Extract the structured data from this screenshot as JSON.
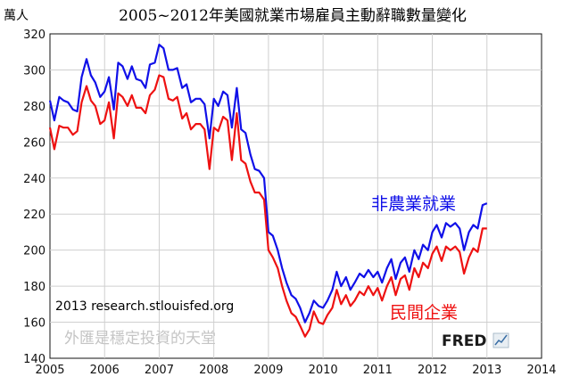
{
  "chart_data": {
    "type": "line",
    "title": "2005~2012年美國就業市場雇員主動辭職數量變化",
    "ylabel": "萬人",
    "xlabel": "",
    "xlim": [
      2005,
      2014
    ],
    "ylim": [
      140,
      320
    ],
    "x_ticks": [
      "2005",
      "2006",
      "2007",
      "2008",
      "2009",
      "2010",
      "2011",
      "2012",
      "2013",
      "2014"
    ],
    "y_ticks": [
      "140",
      "160",
      "180",
      "200",
      "220",
      "240",
      "260",
      "280",
      "300",
      "320"
    ],
    "grid": true,
    "legend": "inline labels",
    "series": [
      {
        "name": "非農業就業",
        "color": "#1010e8",
        "points": [
          [
            2005.0,
            283
          ],
          [
            2005.08,
            272
          ],
          [
            2005.17,
            285
          ],
          [
            2005.25,
            283
          ],
          [
            2005.33,
            282
          ],
          [
            2005.42,
            278
          ],
          [
            2005.5,
            277
          ],
          [
            2005.58,
            296
          ],
          [
            2005.67,
            306
          ],
          [
            2005.75,
            297
          ],
          [
            2005.83,
            293
          ],
          [
            2005.92,
            285
          ],
          [
            2006.0,
            288
          ],
          [
            2006.08,
            296
          ],
          [
            2006.17,
            278
          ],
          [
            2006.25,
            304
          ],
          [
            2006.33,
            302
          ],
          [
            2006.42,
            295
          ],
          [
            2006.5,
            302
          ],
          [
            2006.58,
            295
          ],
          [
            2006.67,
            294
          ],
          [
            2006.75,
            290
          ],
          [
            2006.83,
            303
          ],
          [
            2006.92,
            304
          ],
          [
            2007.0,
            314
          ],
          [
            2007.08,
            312
          ],
          [
            2007.17,
            300
          ],
          [
            2007.25,
            300
          ],
          [
            2007.33,
            301
          ],
          [
            2007.42,
            290
          ],
          [
            2007.5,
            292
          ],
          [
            2007.58,
            282
          ],
          [
            2007.67,
            284
          ],
          [
            2007.75,
            284
          ],
          [
            2007.83,
            281
          ],
          [
            2007.92,
            262
          ],
          [
            2008.0,
            284
          ],
          [
            2008.08,
            280
          ],
          [
            2008.17,
            288
          ],
          [
            2008.25,
            286
          ],
          [
            2008.33,
            268
          ],
          [
            2008.42,
            290
          ],
          [
            2008.5,
            267
          ],
          [
            2008.58,
            265
          ],
          [
            2008.67,
            253
          ],
          [
            2008.75,
            245
          ],
          [
            2008.83,
            244
          ],
          [
            2008.92,
            240
          ],
          [
            2009.0,
            210
          ],
          [
            2009.08,
            208
          ],
          [
            2009.17,
            200
          ],
          [
            2009.25,
            190
          ],
          [
            2009.33,
            182
          ],
          [
            2009.42,
            175
          ],
          [
            2009.5,
            173
          ],
          [
            2009.58,
            168
          ],
          [
            2009.67,
            160
          ],
          [
            2009.75,
            165
          ],
          [
            2009.83,
            172
          ],
          [
            2009.92,
            169
          ],
          [
            2010.0,
            168
          ],
          [
            2010.08,
            172
          ],
          [
            2010.17,
            178
          ],
          [
            2010.25,
            188
          ],
          [
            2010.33,
            180
          ],
          [
            2010.42,
            185
          ],
          [
            2010.5,
            178
          ],
          [
            2010.58,
            182
          ],
          [
            2010.67,
            187
          ],
          [
            2010.75,
            185
          ],
          [
            2010.83,
            189
          ],
          [
            2010.92,
            185
          ],
          [
            2011.0,
            188
          ],
          [
            2011.08,
            182
          ],
          [
            2011.17,
            190
          ],
          [
            2011.25,
            195
          ],
          [
            2011.33,
            184
          ],
          [
            2011.42,
            193
          ],
          [
            2011.5,
            196
          ],
          [
            2011.58,
            188
          ],
          [
            2011.67,
            200
          ],
          [
            2011.75,
            195
          ],
          [
            2011.83,
            203
          ],
          [
            2011.92,
            200
          ],
          [
            2012.0,
            210
          ],
          [
            2012.08,
            214
          ],
          [
            2012.17,
            207
          ],
          [
            2012.25,
            215
          ],
          [
            2012.33,
            213
          ],
          [
            2012.42,
            215
          ],
          [
            2012.5,
            212
          ],
          [
            2012.58,
            200
          ],
          [
            2012.67,
            210
          ],
          [
            2012.75,
            214
          ],
          [
            2012.83,
            212
          ],
          [
            2012.92,
            225
          ],
          [
            2013.0,
            226
          ]
        ]
      },
      {
        "name": "民間企業",
        "color": "#ee1111",
        "points": [
          [
            2005.0,
            268
          ],
          [
            2005.08,
            256
          ],
          [
            2005.17,
            269
          ],
          [
            2005.25,
            268
          ],
          [
            2005.33,
            268
          ],
          [
            2005.42,
            264
          ],
          [
            2005.5,
            266
          ],
          [
            2005.58,
            282
          ],
          [
            2005.67,
            291
          ],
          [
            2005.75,
            283
          ],
          [
            2005.83,
            280
          ],
          [
            2005.92,
            270
          ],
          [
            2006.0,
            272
          ],
          [
            2006.08,
            282
          ],
          [
            2006.17,
            262
          ],
          [
            2006.25,
            287
          ],
          [
            2006.33,
            285
          ],
          [
            2006.42,
            280
          ],
          [
            2006.5,
            286
          ],
          [
            2006.58,
            279
          ],
          [
            2006.67,
            279
          ],
          [
            2006.75,
            276
          ],
          [
            2006.83,
            286
          ],
          [
            2006.92,
            289
          ],
          [
            2007.0,
            297
          ],
          [
            2007.08,
            296
          ],
          [
            2007.17,
            284
          ],
          [
            2007.25,
            283
          ],
          [
            2007.33,
            285
          ],
          [
            2007.42,
            273
          ],
          [
            2007.5,
            276
          ],
          [
            2007.58,
            267
          ],
          [
            2007.67,
            270
          ],
          [
            2007.75,
            270
          ],
          [
            2007.83,
            267
          ],
          [
            2007.92,
            245
          ],
          [
            2008.0,
            268
          ],
          [
            2008.08,
            266
          ],
          [
            2008.17,
            274
          ],
          [
            2008.25,
            272
          ],
          [
            2008.33,
            250
          ],
          [
            2008.42,
            276
          ],
          [
            2008.5,
            250
          ],
          [
            2008.58,
            248
          ],
          [
            2008.67,
            238
          ],
          [
            2008.75,
            232
          ],
          [
            2008.83,
            232
          ],
          [
            2008.92,
            228
          ],
          [
            2009.0,
            200
          ],
          [
            2009.08,
            196
          ],
          [
            2009.17,
            190
          ],
          [
            2009.25,
            180
          ],
          [
            2009.33,
            172
          ],
          [
            2009.42,
            165
          ],
          [
            2009.5,
            163
          ],
          [
            2009.58,
            158
          ],
          [
            2009.67,
            152
          ],
          [
            2009.75,
            156
          ],
          [
            2009.83,
            166
          ],
          [
            2009.92,
            160
          ],
          [
            2010.0,
            159
          ],
          [
            2010.08,
            164
          ],
          [
            2010.17,
            168
          ],
          [
            2010.25,
            178
          ],
          [
            2010.33,
            170
          ],
          [
            2010.42,
            175
          ],
          [
            2010.5,
            169
          ],
          [
            2010.58,
            172
          ],
          [
            2010.67,
            177
          ],
          [
            2010.75,
            175
          ],
          [
            2010.83,
            180
          ],
          [
            2010.92,
            175
          ],
          [
            2011.0,
            179
          ],
          [
            2011.08,
            172
          ],
          [
            2011.17,
            180
          ],
          [
            2011.25,
            185
          ],
          [
            2011.33,
            175
          ],
          [
            2011.42,
            184
          ],
          [
            2011.5,
            186
          ],
          [
            2011.58,
            178
          ],
          [
            2011.67,
            190
          ],
          [
            2011.75,
            185
          ],
          [
            2011.83,
            193
          ],
          [
            2011.92,
            190
          ],
          [
            2012.0,
            198
          ],
          [
            2012.08,
            202
          ],
          [
            2012.17,
            194
          ],
          [
            2012.25,
            202
          ],
          [
            2012.33,
            200
          ],
          [
            2012.42,
            202
          ],
          [
            2012.5,
            199
          ],
          [
            2012.58,
            187
          ],
          [
            2012.67,
            196
          ],
          [
            2012.75,
            201
          ],
          [
            2012.83,
            199
          ],
          [
            2012.92,
            212
          ],
          [
            2013.0,
            212
          ]
        ]
      }
    ]
  },
  "credit": "2013 research.stlouisfed.org",
  "watermark": "外匯是穩定投資的天堂",
  "logo_text": "FRED"
}
